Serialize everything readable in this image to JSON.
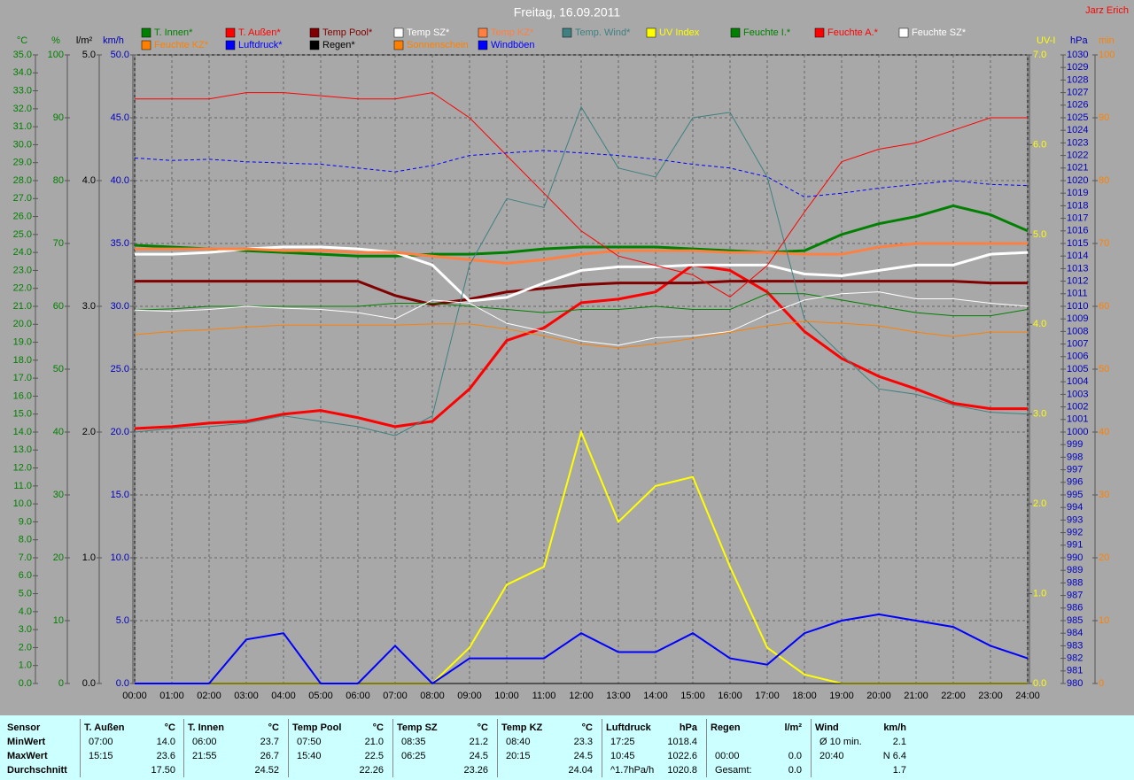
{
  "chart_data": {
    "type": "line",
    "title": "Freitag, 16.09.2011",
    "author": "Jarz Erich",
    "categories": [
      "00:00",
      "01:00",
      "02:00",
      "03:00",
      "04:00",
      "05:00",
      "06:00",
      "07:00",
      "08:00",
      "09:00",
      "10:00",
      "11:00",
      "12:00",
      "13:00",
      "14:00",
      "15:00",
      "16:00",
      "17:00",
      "18:00",
      "19:00",
      "20:00",
      "21:00",
      "22:00",
      "23:00",
      "24:00"
    ],
    "grid": true,
    "axes": [
      {
        "label": "°C",
        "side": "left",
        "color": "#008000",
        "lim": [
          0,
          35
        ],
        "ticks": [
          {
            "value": 0,
            "label": "0.0"
          },
          {
            "value": 1,
            "label": "1.0"
          },
          {
            "value": 2,
            "label": "2.0"
          },
          {
            "value": 3,
            "label": "3.0"
          },
          {
            "value": 4,
            "label": "4.0"
          },
          {
            "value": 5,
            "label": "5.0"
          },
          {
            "value": 6,
            "label": "6.0"
          },
          {
            "value": 7,
            "label": "7.0"
          },
          {
            "value": 8,
            "label": "8.0"
          },
          {
            "value": 9,
            "label": "9.0"
          },
          {
            "value": 10,
            "label": "10.0"
          },
          {
            "value": 11,
            "label": "11.0"
          },
          {
            "value": 12,
            "label": "12.0"
          },
          {
            "value": 13,
            "label": "13.0"
          },
          {
            "value": 14,
            "label": "14.0"
          },
          {
            "value": 15,
            "label": "15.0"
          },
          {
            "value": 16,
            "label": "16.0"
          },
          {
            "value": 17,
            "label": "17.0"
          },
          {
            "value": 18,
            "label": "18.0"
          },
          {
            "value": 19,
            "label": "19.0"
          },
          {
            "value": 20,
            "label": "20.0"
          },
          {
            "value": 21,
            "label": "21.0"
          },
          {
            "value": 22,
            "label": "22.0"
          },
          {
            "value": 23,
            "label": "23.0"
          },
          {
            "value": 24,
            "label": "24.0"
          },
          {
            "value": 25,
            "label": "25.0"
          },
          {
            "value": 26,
            "label": "26.0"
          },
          {
            "value": 27,
            "label": "27.0"
          },
          {
            "value": 28,
            "label": "28.0"
          },
          {
            "value": 29,
            "label": "29.0"
          },
          {
            "value": 30,
            "label": "30.0"
          },
          {
            "value": 31,
            "label": "31.0"
          },
          {
            "value": 32,
            "label": "32.0"
          },
          {
            "value": 33,
            "label": "33.0"
          },
          {
            "value": 34,
            "label": "34.0"
          },
          {
            "value": 35,
            "label": "35.0"
          }
        ]
      },
      {
        "label": "%",
        "side": "left",
        "color": "#008000",
        "lim": [
          0,
          100
        ],
        "ticks": [
          0,
          10,
          20,
          30,
          40,
          50,
          60,
          70,
          80,
          90,
          100
        ]
      },
      {
        "label": "l/m²",
        "side": "left",
        "color": "#000000",
        "lim": [
          0,
          5
        ],
        "ticks": [
          {
            "value": 0,
            "label": "0.0"
          },
          {
            "value": 1,
            "label": "1.0"
          },
          {
            "value": 2,
            "label": "2.0"
          },
          {
            "value": 3,
            "label": "3.0"
          },
          {
            "value": 4,
            "label": "4.0"
          },
          {
            "value": 5,
            "label": "5.0"
          }
        ]
      },
      {
        "label": "km/h",
        "side": "left",
        "color": "#0000c0",
        "lim": [
          0,
          50
        ],
        "ticks": [
          {
            "value": 0,
            "label": "0.0"
          },
          {
            "value": 5,
            "label": "5.0"
          },
          {
            "value": 10,
            "label": "10.0"
          },
          {
            "value": 15,
            "label": "15.0"
          },
          {
            "value": 20,
            "label": "20.0"
          },
          {
            "value": 25,
            "label": "25.0"
          },
          {
            "value": 30,
            "label": "30.0"
          },
          {
            "value": 35,
            "label": "35.0"
          },
          {
            "value": 40,
            "label": "40.0"
          },
          {
            "value": 45,
            "label": "45.0"
          },
          {
            "value": 50,
            "label": "50.0"
          }
        ]
      },
      {
        "label": "UV-I",
        "side": "right",
        "color": "#ffff00",
        "lim": [
          0,
          7
        ],
        "ticks": [
          {
            "value": 0,
            "label": "0.0"
          },
          {
            "value": 1,
            "label": "1.0"
          },
          {
            "value": 2,
            "label": "2.0"
          },
          {
            "value": 3,
            "label": "3.0"
          },
          {
            "value": 4,
            "label": "4.0"
          },
          {
            "value": 5,
            "label": "5.0"
          },
          {
            "value": 6,
            "label": "6.0"
          },
          {
            "value": 7,
            "label": "7.0"
          }
        ]
      },
      {
        "label": "hPa",
        "side": "right",
        "color": "#0000c0",
        "lim": [
          980,
          1030
        ],
        "ticks": [
          980,
          981,
          982,
          983,
          984,
          985,
          986,
          987,
          988,
          989,
          990,
          991,
          992,
          993,
          994,
          995,
          996,
          997,
          998,
          999,
          1000,
          1001,
          1002,
          1003,
          1004,
          1005,
          1006,
          1007,
          1008,
          1009,
          1010,
          1011,
          1012,
          1013,
          1014,
          1015,
          1016,
          1017,
          1018,
          1019,
          1020,
          1021,
          1022,
          1023,
          1024,
          1025,
          1026,
          1027,
          1028,
          1029,
          1030
        ]
      },
      {
        "label": "min",
        "side": "right",
        "color": "#ff8000",
        "lim": [
          0,
          100
        ],
        "ticks": [
          0,
          10,
          20,
          30,
          40,
          50,
          60,
          70,
          80,
          90,
          100
        ]
      }
    ],
    "series": [
      {
        "name": "T. Innen*",
        "color": "#008000",
        "axis": 0,
        "line_width": 3,
        "values": [
          24.4,
          24.3,
          24.2,
          24.1,
          24.0,
          23.9,
          23.8,
          23.8,
          23.9,
          23.9,
          24.0,
          24.2,
          24.3,
          24.3,
          24.3,
          24.2,
          24.1,
          24.0,
          24.1,
          25.0,
          25.6,
          26.0,
          26.6,
          26.1,
          25.2
        ]
      },
      {
        "name": "T. Außen*",
        "color": "#ff0000",
        "axis": 0,
        "line_width": 3,
        "values": [
          14.2,
          14.3,
          14.5,
          14.6,
          15.0,
          15.2,
          14.8,
          14.3,
          14.6,
          16.4,
          19.1,
          19.8,
          21.2,
          21.4,
          21.8,
          23.3,
          23.0,
          21.8,
          19.6,
          18.1,
          17.1,
          16.4,
          15.6,
          15.3,
          15.3
        ]
      },
      {
        "name": "Temp Pool*",
        "color": "#800000",
        "axis": 0,
        "line_width": 3,
        "values": [
          22.4,
          22.4,
          22.4,
          22.4,
          22.4,
          22.4,
          22.4,
          21.6,
          21.1,
          21.4,
          21.8,
          22.0,
          22.2,
          22.3,
          22.3,
          22.3,
          22.4,
          22.4,
          22.4,
          22.4,
          22.4,
          22.4,
          22.4,
          22.3,
          22.3
        ]
      },
      {
        "name": "Temp SZ*",
        "color": "#ffffff",
        "axis": 0,
        "line_width": 3,
        "values": [
          23.9,
          23.9,
          24.0,
          24.2,
          24.3,
          24.3,
          24.2,
          24.0,
          23.3,
          21.3,
          21.5,
          22.3,
          23.0,
          23.2,
          23.2,
          23.3,
          23.3,
          23.3,
          22.8,
          22.7,
          23.0,
          23.3,
          23.3,
          23.9,
          24.0
        ]
      },
      {
        "name": "Temp KZ*",
        "color": "#ff8040",
        "axis": 0,
        "line_width": 3,
        "values": [
          24.2,
          24.2,
          24.2,
          24.2,
          24.1,
          24.1,
          24.0,
          24.0,
          23.8,
          23.6,
          23.4,
          23.6,
          23.9,
          24.1,
          24.1,
          24.1,
          24.0,
          24.0,
          23.9,
          23.9,
          24.3,
          24.5,
          24.5,
          24.5,
          24.5
        ]
      },
      {
        "name": "Temp. Wind*",
        "color": "#408080",
        "axis": 0,
        "line_width": 1,
        "values": [
          14.0,
          14.2,
          14.3,
          14.5,
          14.9,
          14.6,
          14.3,
          13.8,
          14.9,
          23.3,
          27.0,
          26.5,
          32.1,
          28.7,
          28.2,
          31.5,
          31.8,
          28.2,
          20.3,
          18.3,
          16.4,
          16.1,
          15.5,
          15.1,
          15.0
        ]
      },
      {
        "name": "UV Index",
        "color": "#ffff00",
        "axis": 4,
        "line_width": 2,
        "values": [
          0,
          0,
          0,
          0,
          0,
          0,
          0,
          0,
          0,
          0.4,
          1.1,
          1.3,
          2.8,
          1.8,
          2.2,
          2.3,
          1.3,
          0.4,
          0.1,
          0,
          0,
          0,
          0,
          0,
          0
        ]
      },
      {
        "name": "Feuchte I.*",
        "color": "#008000",
        "axis": 1,
        "line_width": 1,
        "values": [
          59.4,
          59.6,
          60,
          60,
          60,
          60,
          60,
          60.5,
          60.5,
          60,
          59.5,
          59,
          59.5,
          59.5,
          60,
          59.5,
          59.5,
          62,
          62,
          61,
          60,
          59,
          58.5,
          58.5,
          59.5
        ]
      },
      {
        "name": "Feuchte A.*",
        "color": "#ff0000",
        "axis": 1,
        "line_width": 1,
        "values": [
          93,
          93,
          93,
          94,
          94,
          93.5,
          93,
          93,
          94,
          90,
          84,
          78,
          72,
          68,
          66.5,
          65,
          61.5,
          66.5,
          75,
          83,
          85,
          86,
          88,
          90,
          90
        ]
      },
      {
        "name": "Feuchte SZ*",
        "color": "#ffffff",
        "axis": 1,
        "line_width": 1,
        "values": [
          59.4,
          59.2,
          59.5,
          60,
          59.7,
          59.5,
          59,
          58,
          61,
          60.5,
          57.3,
          56,
          54.5,
          53.8,
          55,
          55.3,
          56,
          58.7,
          61,
          62,
          62.3,
          61.2,
          61.2,
          60.5,
          60
        ]
      },
      {
        "name": "Feuchte KZ*",
        "color": "#ff8000",
        "axis": 1,
        "line_width": 1,
        "values": [
          55.5,
          56,
          56.3,
          56.7,
          57,
          57,
          57,
          57,
          57.2,
          57.2,
          56.4,
          55.3,
          54,
          53.4,
          54,
          54.9,
          55.9,
          56.9,
          57.6,
          57.3,
          56.9,
          55.9,
          55.2,
          55.9,
          55.9
        ]
      },
      {
        "name": "Luftdruck*",
        "color": "#0000ff",
        "axis": 5,
        "line_width": 1,
        "dashed": true,
        "values": [
          1021.8,
          1021.6,
          1021.7,
          1021.5,
          1021.4,
          1021.3,
          1021.0,
          1020.7,
          1021.2,
          1022.0,
          1022.2,
          1022.4,
          1022.2,
          1022.0,
          1021.7,
          1021.3,
          1021.0,
          1020.3,
          1018.7,
          1019.0,
          1019.4,
          1019.7,
          1020.0,
          1019.7,
          1019.6
        ]
      },
      {
        "name": "Regen*",
        "color": "#000000",
        "axis": 2,
        "line_width": 1,
        "values": [
          0,
          0,
          0,
          0,
          0,
          0,
          0,
          0,
          0,
          0,
          0,
          0,
          0,
          0,
          0,
          0,
          0,
          0,
          0,
          0,
          0,
          0,
          0,
          0,
          0
        ]
      },
      {
        "name": "Sonnenschein",
        "color": "#ff8000",
        "axis": 6,
        "line_width": 1,
        "values": [
          null,
          null,
          null,
          null,
          null,
          null,
          null,
          null,
          null,
          null,
          null,
          null,
          null,
          null,
          null,
          null,
          null,
          null,
          null,
          null,
          null,
          null,
          null,
          null,
          null
        ]
      },
      {
        "name": "Windböen",
        "color": "#0000ff",
        "axis": 3,
        "line_width": 2,
        "values": [
          0,
          0,
          0,
          3.5,
          4,
          0,
          0,
          3,
          0,
          2,
          2,
          2,
          4,
          2.5,
          2.5,
          4,
          2,
          1.5,
          4,
          5,
          5.5,
          5,
          4.5,
          3,
          2
        ]
      }
    ]
  },
  "table": {
    "header": "Sensor",
    "row_labels": [
      "MinWert",
      "MaxWert",
      "Durchschnitt"
    ],
    "columns": [
      {
        "name": "T. Außen",
        "unit": "°C",
        "cells": [
          [
            "07:00",
            "14.0"
          ],
          [
            "15:15",
            "23.6"
          ],
          [
            null,
            "17.50"
          ]
        ]
      },
      {
        "name": "T. Innen",
        "unit": "°C",
        "cells": [
          [
            "06:00",
            "23.7"
          ],
          [
            "21:55",
            "26.7"
          ],
          [
            null,
            "24.52"
          ]
        ]
      },
      {
        "name": "Temp Pool",
        "unit": "°C",
        "cells": [
          [
            "07:50",
            "21.0"
          ],
          [
            "15:40",
            "22.5"
          ],
          [
            null,
            "22.26"
          ]
        ]
      },
      {
        "name": "Temp SZ",
        "unit": "°C",
        "cells": [
          [
            "08:35",
            "21.2"
          ],
          [
            "06:25",
            "24.5"
          ],
          [
            null,
            "23.26"
          ]
        ]
      },
      {
        "name": "Temp KZ",
        "unit": "°C",
        "cells": [
          [
            "08:40",
            "23.3"
          ],
          [
            "20:15",
            "24.5"
          ],
          [
            null,
            "24.04"
          ]
        ]
      },
      {
        "name": "Luftdruck",
        "unit": "hPa",
        "cells": [
          [
            "17:25",
            "1018.4"
          ],
          [
            "10:45",
            "1022.6"
          ],
          [
            "^1.7hPa/h",
            "1020.8"
          ]
        ]
      },
      {
        "name": "Regen",
        "unit": "l/m²",
        "cells": [
          [
            null,
            null
          ],
          [
            "00:00",
            "0.0"
          ],
          [
            "Gesamt:",
            "0.0"
          ]
        ]
      },
      {
        "name": "Wind",
        "unit": "km/h",
        "cells": [
          [
            "Ø 10 min.",
            "2.1"
          ],
          [
            "20:40",
            "N 6.4"
          ],
          [
            null,
            "1.7"
          ]
        ]
      }
    ]
  }
}
